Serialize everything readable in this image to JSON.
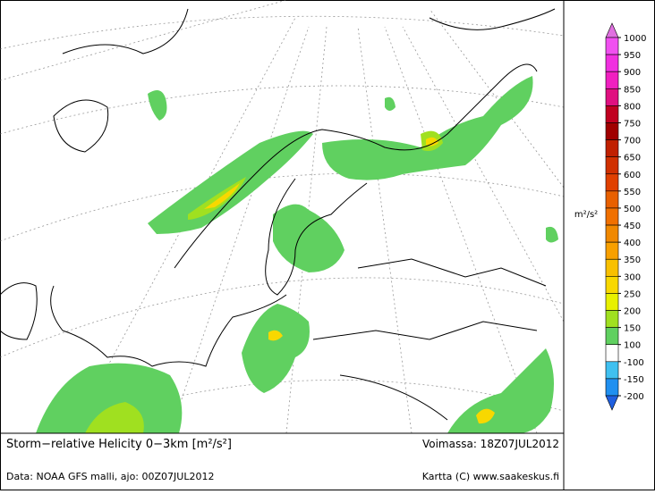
{
  "map": {
    "title": "Storm−relative Helicity 0−3km [m²/s²]",
    "valid": "Voimassa: 18Z07JUL2012",
    "source": "Data: NOAA GFS malli, ajo: 00Z07JUL2012",
    "credit": "Kartta (C) www.saakeskus.fi",
    "colorbar": {
      "unit": "m²/s²",
      "ticks": [
        1000,
        950,
        900,
        850,
        800,
        750,
        700,
        650,
        600,
        550,
        500,
        450,
        400,
        350,
        300,
        250,
        200,
        150,
        100,
        -100,
        -150,
        -200
      ],
      "colors": [
        "#e070e0",
        "#f050f0",
        "#f030e0",
        "#f020c0",
        "#e01080",
        "#c00020",
        "#a00000",
        "#c02000",
        "#d03000",
        "#e04000",
        "#e86000",
        "#f07000",
        "#f08800",
        "#f8a000",
        "#f8c000",
        "#f8d800",
        "#e8f000",
        "#a0e020",
        "#60d060",
        "#ffffff",
        "#40c0f0",
        "#2090f0",
        "#2060e0"
      ]
    }
  }
}
